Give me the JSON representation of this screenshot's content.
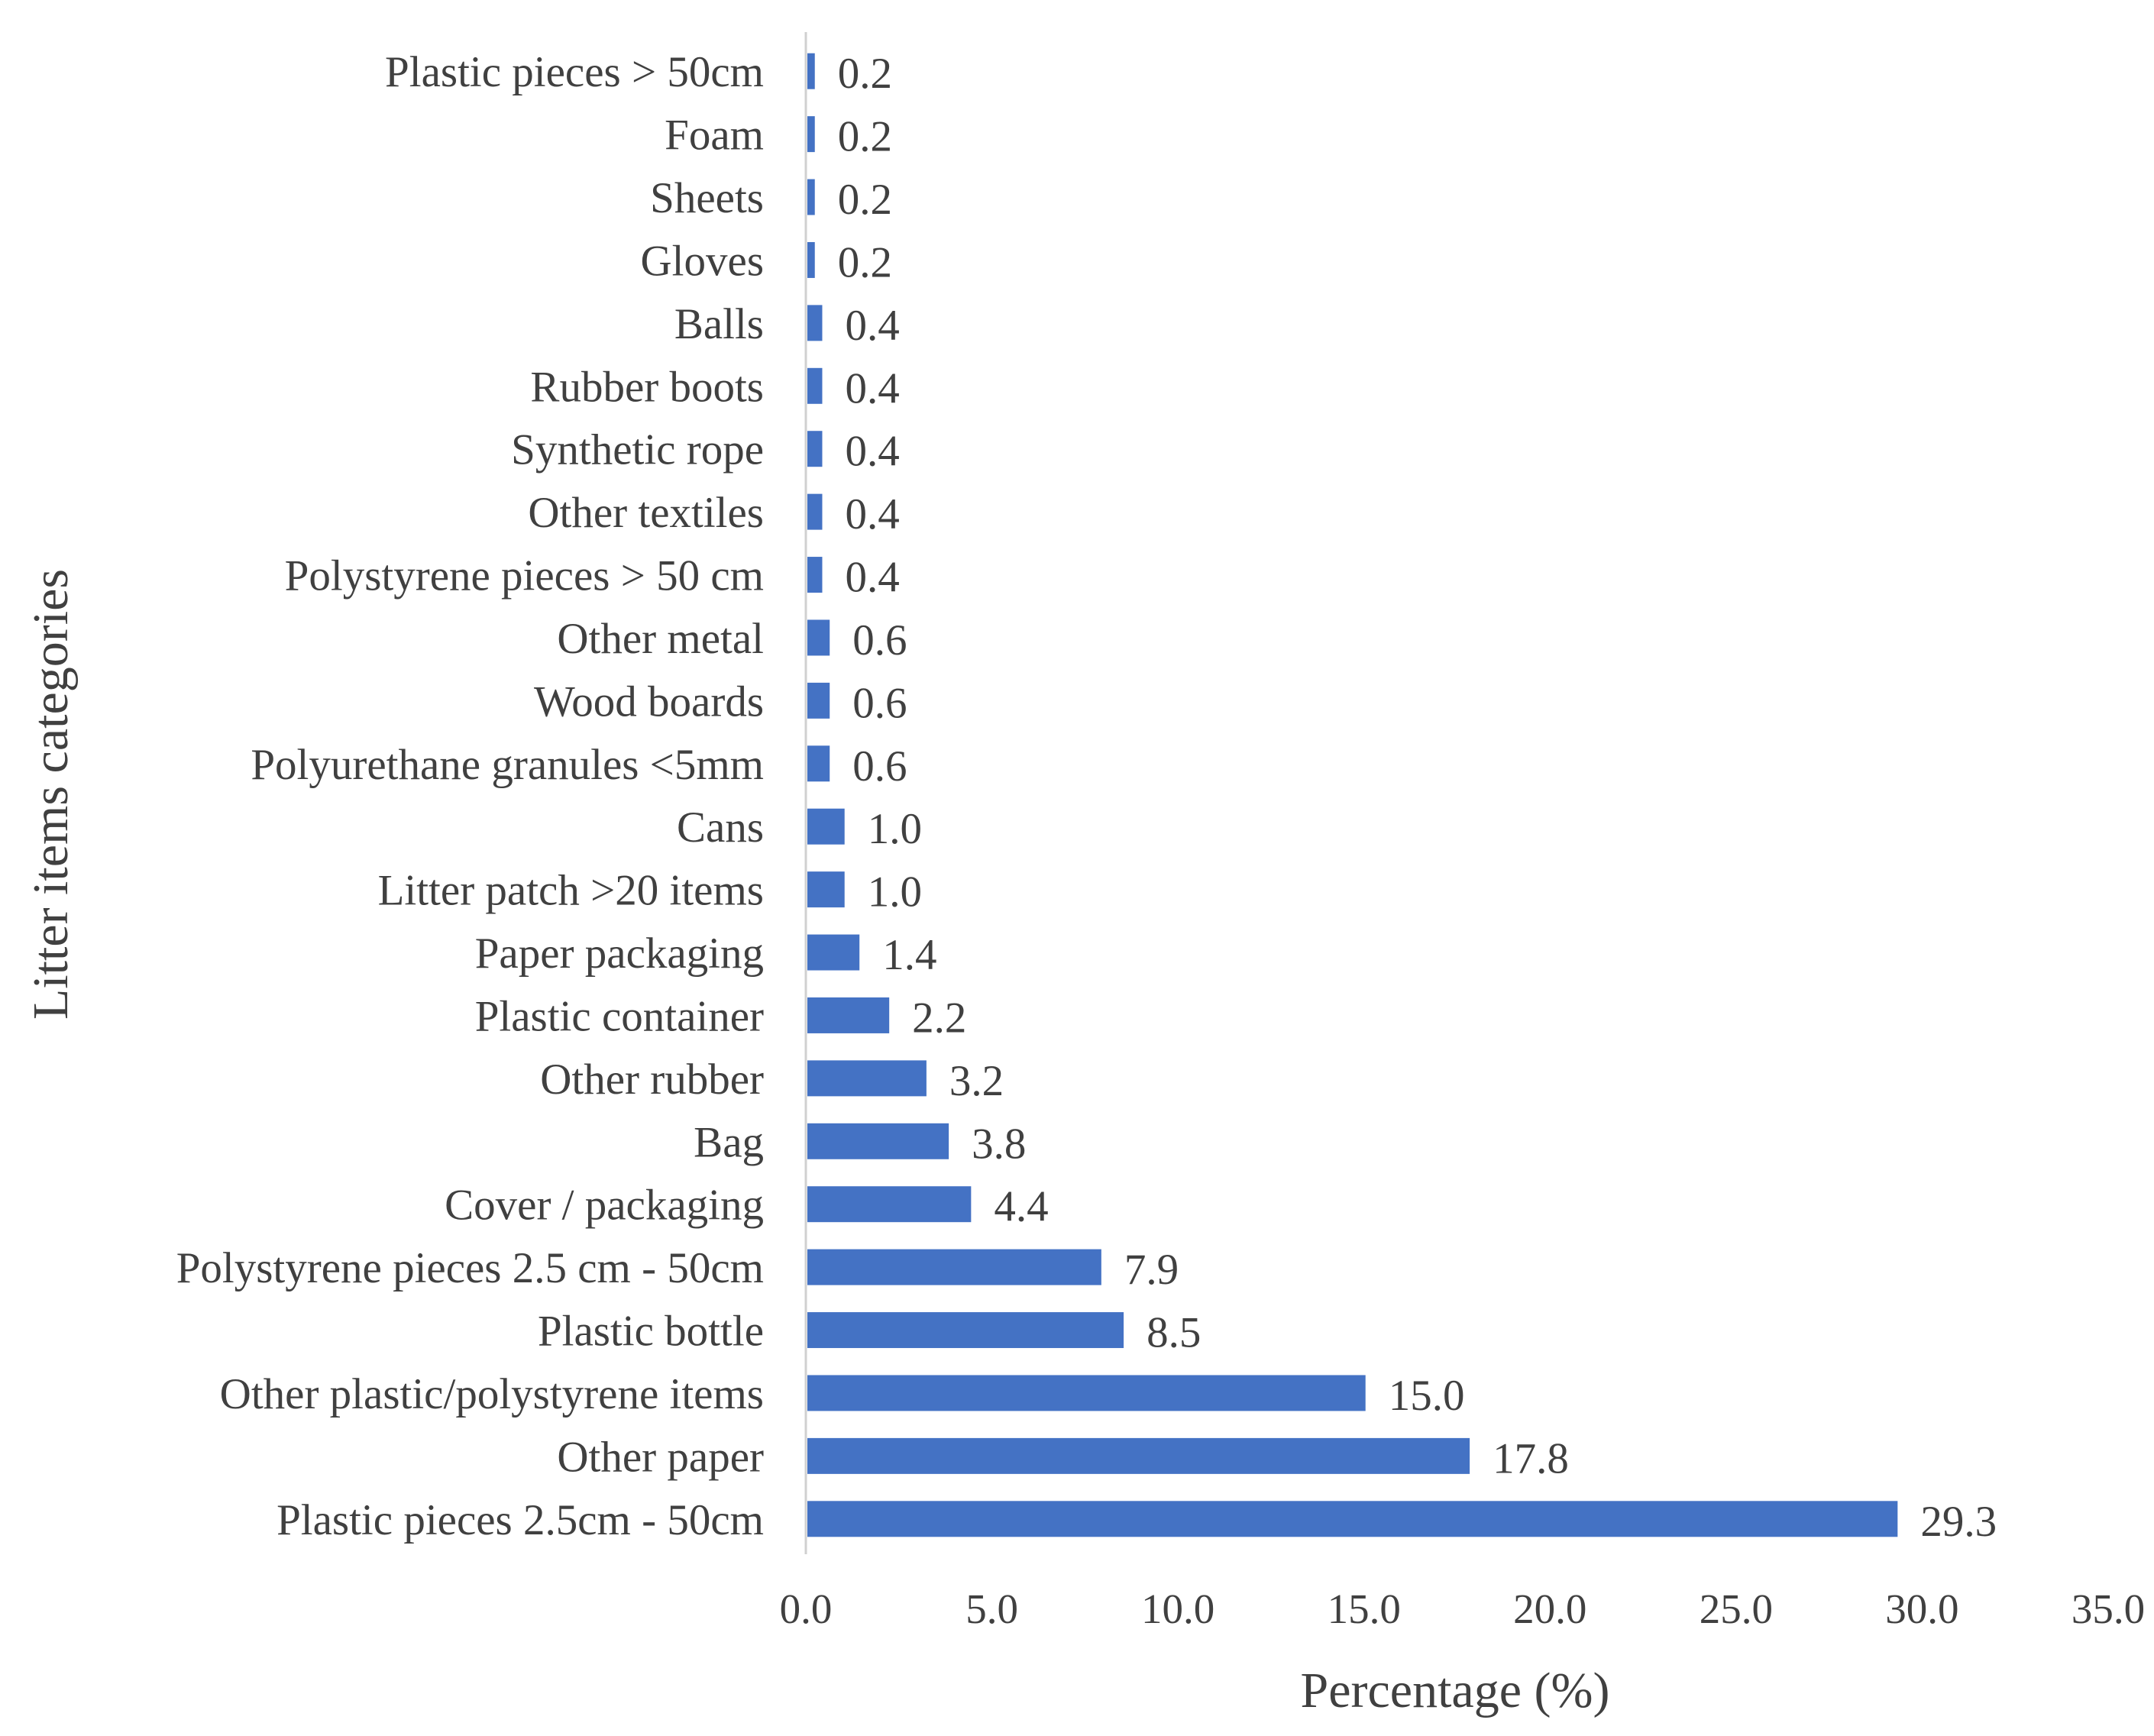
{
  "chart_data": {
    "type": "bar",
    "orientation": "horizontal",
    "title": "",
    "xlabel": "Percentage  (%)",
    "ylabel": "Litter items categories",
    "xlim": [
      0,
      35
    ],
    "x_ticks": [
      "0.0",
      "5.0",
      "10.0",
      "15.0",
      "20.0",
      "25.0",
      "30.0",
      "35.0"
    ],
    "grid": false,
    "legend": "none",
    "bar_color": "#4472C4",
    "categories": [
      "Plastic pieces > 50cm",
      "Foam",
      "Sheets",
      "Gloves",
      "Balls",
      "Rubber boots",
      "Synthetic rope",
      "Other textiles",
      "Polystyrene pieces > 50 cm",
      "Other metal",
      "Wood boards",
      "Polyurethane granules <5mm",
      "Cans",
      "Litter patch >20 items",
      "Paper packaging",
      "Plastic container",
      "Other rubber",
      "Bag",
      "Cover / packaging",
      "Polystyrene pieces 2.5 cm - 50cm",
      "Plastic bottle",
      "Other plastic/polystyrene items",
      "Other paper",
      "Plastic pieces 2.5cm - 50cm"
    ],
    "values": [
      0.2,
      0.2,
      0.2,
      0.2,
      0.4,
      0.4,
      0.4,
      0.4,
      0.4,
      0.6,
      0.6,
      0.6,
      1.0,
      1.0,
      1.4,
      2.2,
      3.2,
      3.8,
      4.4,
      7.9,
      8.5,
      15.0,
      17.8,
      29.3
    ],
    "value_labels": [
      "0.2",
      "0.2",
      "0.2",
      "0.2",
      "0.4",
      "0.4",
      "0.4",
      "0.4",
      "0.4",
      "0.6",
      "0.6",
      "0.6",
      "1.0",
      "1.0",
      "1.4",
      "2.2",
      "3.2",
      "3.8",
      "4.4",
      "7.9",
      "8.5",
      "15.0",
      "17.8",
      "29.3"
    ]
  }
}
